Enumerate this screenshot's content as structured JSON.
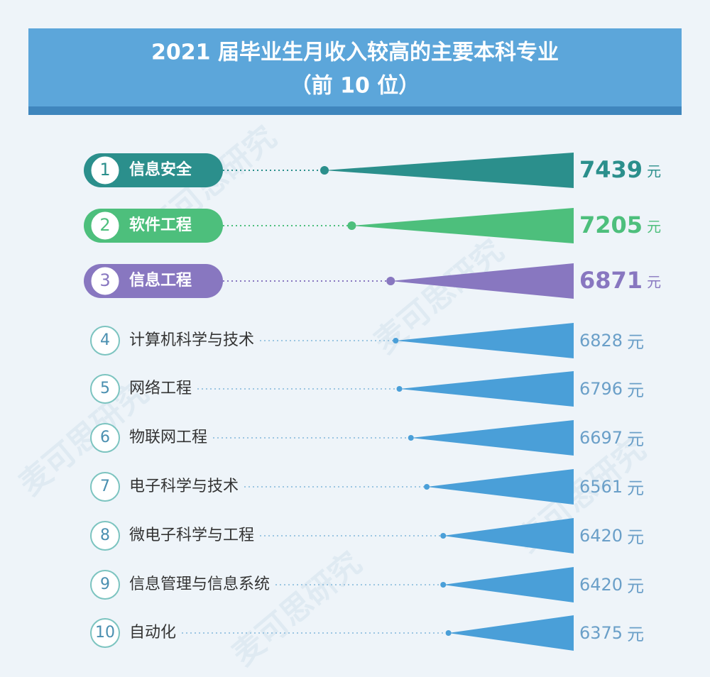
{
  "chart_data": {
    "type": "wedge-bar",
    "title": "2021 届毕业生月收入较高的主要本科专业",
    "subtitle": "（前 10 位）",
    "watermark": "麦可思研究",
    "ranks": [
      "1",
      "2",
      "3",
      "4",
      "5",
      "6",
      "7",
      "8",
      "9",
      "10"
    ],
    "categories": [
      "信息安全",
      "软件工程",
      "信息工程",
      "计算机科学与技术",
      "网络工程",
      "物联网工程",
      "电子科学与技术",
      "微电子科学与工程",
      "信息管理与信息系统",
      "自动化"
    ],
    "values": [
      7439,
      7205,
      6871,
      6828,
      6796,
      6697,
      6561,
      6420,
      6420,
      6375
    ],
    "unit": "元",
    "colors": [
      "#2b8f8c",
      "#4dbf7c",
      "#8877c0",
      "#4a9fd8",
      "#4a9fd8",
      "#4a9fd8",
      "#4a9fd8",
      "#4a9fd8",
      "#4a9fd8",
      "#4a9fd8"
    ],
    "highlight_top": 3,
    "xlim": [
      5300,
      7500
    ]
  }
}
